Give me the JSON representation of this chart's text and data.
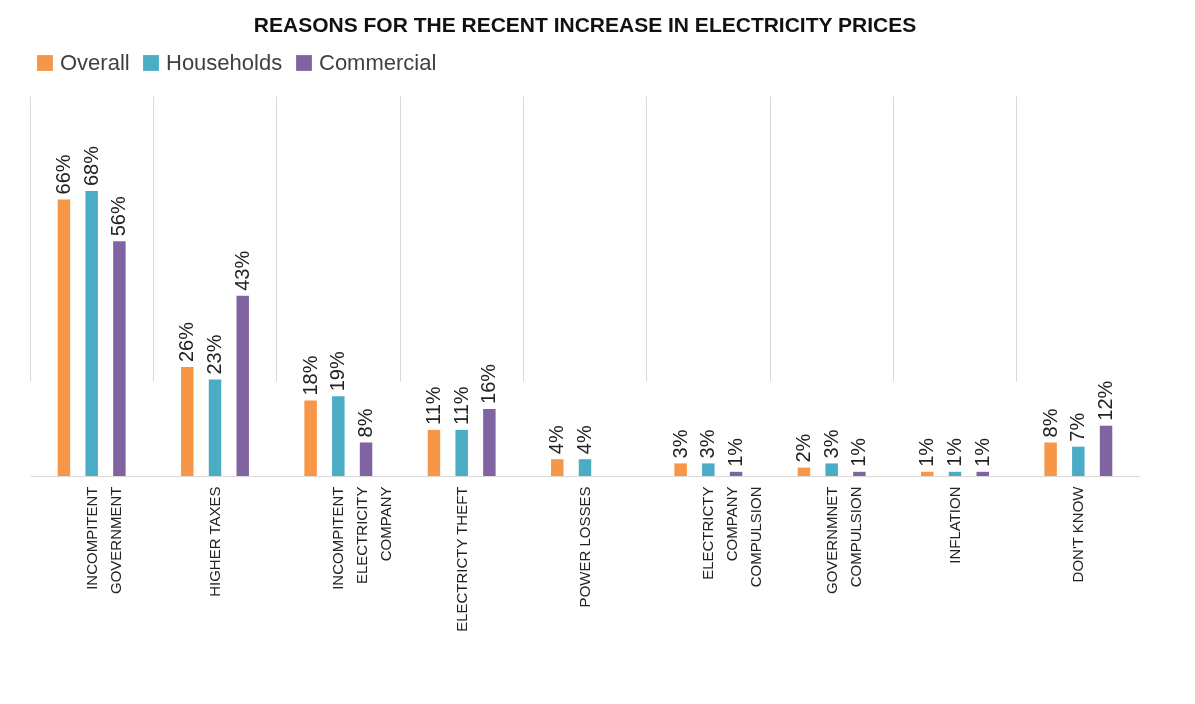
{
  "chart_data": {
    "type": "bar",
    "title": "REASONS FOR THE RECENT INCREASE IN ELECTRICITY PRICES",
    "categories": [
      "INCOMPITENT GOVERNMENT",
      "HIGHER TAXES",
      "INCOMPITENT ELECTRICITY COMPANY",
      "ELECTRICTY THEFT",
      "POWER LOSSES",
      "ELECTRICTY COMPANY COMPULSION",
      "GOVERNMNET COMPULSION",
      "INFLATION",
      "DON'T KNOW"
    ],
    "series": [
      {
        "name": "Overall",
        "color": "#f79646",
        "values": [
          66,
          26,
          18,
          11,
          4,
          3,
          2,
          1,
          8
        ],
        "value_labels": [
          "66%",
          "26%",
          "18%",
          "11%",
          "4%",
          "3%",
          "2%",
          "1%",
          "8%"
        ]
      },
      {
        "name": "Households",
        "color": "#4bacc6",
        "values": [
          68,
          23,
          19,
          11,
          4,
          3,
          3,
          1,
          7
        ],
        "value_labels": [
          "68%",
          "23%",
          "19%",
          "11%",
          "4%",
          "3%",
          "3%",
          "1%",
          "7%"
        ]
      },
      {
        "name": "Commercial",
        "color": "#8064a2",
        "values": [
          56,
          43,
          8,
          16,
          null,
          1,
          1,
          1,
          12
        ],
        "value_labels": [
          "56%",
          "43%",
          "8%",
          "16%",
          null,
          "1%",
          "1%",
          "1%",
          "12%"
        ]
      }
    ],
    "legend": "top",
    "grid": "x"
  }
}
